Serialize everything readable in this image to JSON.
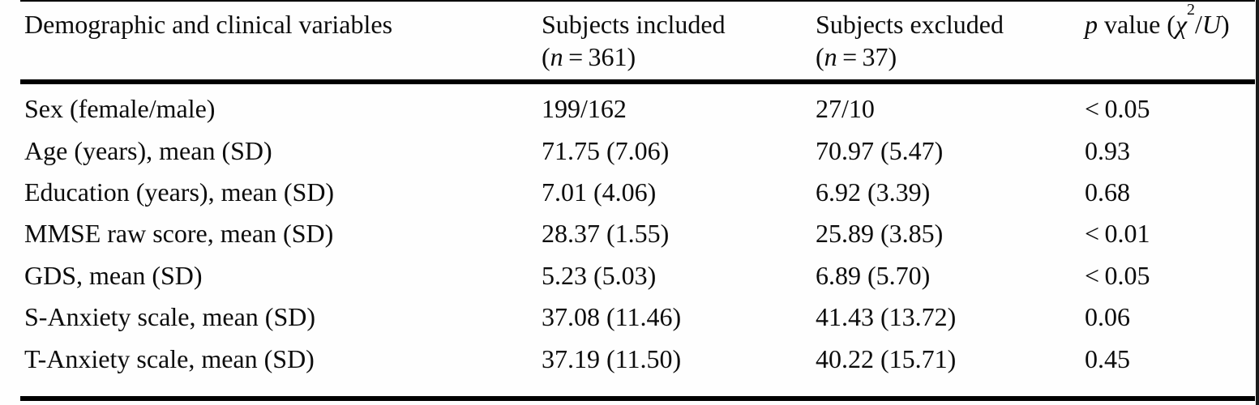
{
  "page": {
    "background": "#fefefe",
    "text_color": "#0c0c0c",
    "rule_color": "#000000"
  },
  "table": {
    "header": {
      "col1": "Demographic and clinical variables",
      "col2": {
        "line1": "Subjects included",
        "n_open": "(",
        "n_var": "n",
        "n_rest": " = 361)"
      },
      "col3": {
        "line1": "Subjects excluded",
        "n_open": "(",
        "n_var": "n",
        "n_rest": " = 37)"
      },
      "col4": {
        "p_var": "p",
        "mid": " value (",
        "chi": "χ",
        "sup": "2",
        "slash": "/",
        "u_var": "U",
        "close": ")"
      }
    },
    "rows": [
      {
        "label": "Sex (female/male)",
        "included": "199/162",
        "excluded": "27/10",
        "p": "< 0.05"
      },
      {
        "label": "Age (years), mean (SD)",
        "included": "71.75 (7.06)",
        "excluded": "70.97 (5.47)",
        "p": "0.93"
      },
      {
        "label": "Education (years), mean (SD)",
        "included": "7.01 (4.06)",
        "excluded": "6.92 (3.39)",
        "p": "0.68"
      },
      {
        "label": "MMSE raw score, mean (SD)",
        "included": "28.37 (1.55)",
        "excluded": "25.89 (3.85)",
        "p": "< 0.01"
      },
      {
        "label": "GDS, mean (SD)",
        "included": "5.23 (5.03)",
        "excluded": "6.89 (5.70)",
        "p": "< 0.05"
      },
      {
        "label": "S-Anxiety scale, mean (SD)",
        "included": "37.08 (11.46)",
        "excluded": "41.43 (13.72)",
        "p": "0.06"
      },
      {
        "label": "T-Anxiety scale, mean (SD)",
        "included": "37.19 (11.50)",
        "excluded": "40.22 (15.71)",
        "p": "0.45"
      }
    ]
  }
}
